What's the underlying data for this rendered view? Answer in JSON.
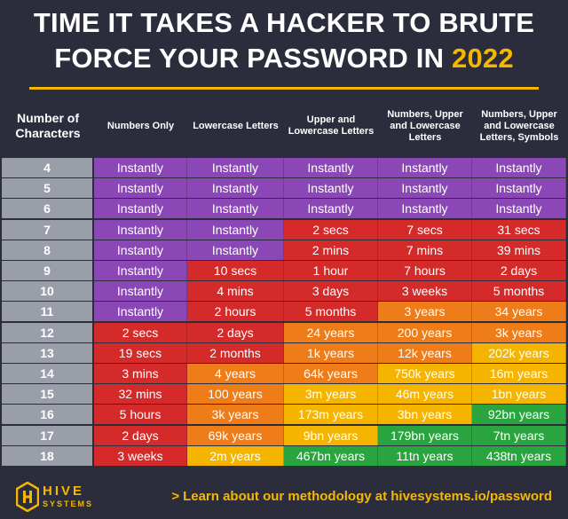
{
  "title": {
    "line1": "TIME IT TAKES A HACKER TO BRUTE",
    "line2": "FORCE YOUR PASSWORD IN ",
    "year": "2022"
  },
  "header": {
    "columns": [
      "Number of Characters",
      "Numbers Only",
      "Lowercase Letters",
      "Upper and Lowercase Letters",
      "Numbers, Upper and Lowercase Letters",
      "Numbers, Upper and Lowercase Letters, Symbols"
    ]
  },
  "colors": {
    "purple": "#8b47b5",
    "red": "#d42a2a",
    "orange": "#ee7c18",
    "yellow": "#f5b400",
    "green": "#29a43f",
    "gray": "#9a9ea8",
    "accent": "#f5b800"
  },
  "rows": [
    {
      "n": "4",
      "cells": [
        [
          "Instantly",
          "purple"
        ],
        [
          "Instantly",
          "purple"
        ],
        [
          "Instantly",
          "purple"
        ],
        [
          "Instantly",
          "purple"
        ],
        [
          "Instantly",
          "purple"
        ]
      ]
    },
    {
      "n": "5",
      "cells": [
        [
          "Instantly",
          "purple"
        ],
        [
          "Instantly",
          "purple"
        ],
        [
          "Instantly",
          "purple"
        ],
        [
          "Instantly",
          "purple"
        ],
        [
          "Instantly",
          "purple"
        ]
      ]
    },
    {
      "n": "6",
      "cells": [
        [
          "Instantly",
          "purple"
        ],
        [
          "Instantly",
          "purple"
        ],
        [
          "Instantly",
          "purple"
        ],
        [
          "Instantly",
          "purple"
        ],
        [
          "Instantly",
          "purple"
        ]
      ]
    },
    {
      "n": "7",
      "cells": [
        [
          "Instantly",
          "purple"
        ],
        [
          "Instantly",
          "purple"
        ],
        [
          "2 secs",
          "red"
        ],
        [
          "7 secs",
          "red"
        ],
        [
          "31 secs",
          "red"
        ]
      ]
    },
    {
      "n": "8",
      "cells": [
        [
          "Instantly",
          "purple"
        ],
        [
          "Instantly",
          "purple"
        ],
        [
          "2 mins",
          "red"
        ],
        [
          "7 mins",
          "red"
        ],
        [
          "39 mins",
          "red"
        ]
      ]
    },
    {
      "n": "9",
      "cells": [
        [
          "Instantly",
          "purple"
        ],
        [
          "10 secs",
          "red"
        ],
        [
          "1 hour",
          "red"
        ],
        [
          "7 hours",
          "red"
        ],
        [
          "2 days",
          "red"
        ]
      ]
    },
    {
      "n": "10",
      "cells": [
        [
          "Instantly",
          "purple"
        ],
        [
          "4 mins",
          "red"
        ],
        [
          "3 days",
          "red"
        ],
        [
          "3 weeks",
          "red"
        ],
        [
          "5 months",
          "red"
        ]
      ]
    },
    {
      "n": "11",
      "cells": [
        [
          "Instantly",
          "purple"
        ],
        [
          "2 hours",
          "red"
        ],
        [
          "5 months",
          "red"
        ],
        [
          "3 years",
          "orange"
        ],
        [
          "34 years",
          "orange"
        ]
      ]
    },
    {
      "n": "12",
      "cells": [
        [
          "2 secs",
          "red"
        ],
        [
          "2 days",
          "red"
        ],
        [
          "24 years",
          "orange"
        ],
        [
          "200 years",
          "orange"
        ],
        [
          "3k years",
          "orange"
        ]
      ]
    },
    {
      "n": "13",
      "cells": [
        [
          "19 secs",
          "red"
        ],
        [
          "2 months",
          "red"
        ],
        [
          "1k years",
          "orange"
        ],
        [
          "12k years",
          "orange"
        ],
        [
          "202k years",
          "yellow"
        ]
      ]
    },
    {
      "n": "14",
      "cells": [
        [
          "3 mins",
          "red"
        ],
        [
          "4 years",
          "orange"
        ],
        [
          "64k years",
          "orange"
        ],
        [
          "750k years",
          "yellow"
        ],
        [
          "16m years",
          "yellow"
        ]
      ]
    },
    {
      "n": "15",
      "cells": [
        [
          "32 mins",
          "red"
        ],
        [
          "100 years",
          "orange"
        ],
        [
          "3m years",
          "yellow"
        ],
        [
          "46m years",
          "yellow"
        ],
        [
          "1bn years",
          "yellow"
        ]
      ]
    },
    {
      "n": "16",
      "cells": [
        [
          "5 hours",
          "red"
        ],
        [
          "3k years",
          "orange"
        ],
        [
          "173m years",
          "yellow"
        ],
        [
          "3bn years",
          "yellow"
        ],
        [
          "92bn years",
          "green"
        ]
      ]
    },
    {
      "n": "17",
      "cells": [
        [
          "2 days",
          "red"
        ],
        [
          "69k years",
          "orange"
        ],
        [
          "9bn years",
          "yellow"
        ],
        [
          "179bn years",
          "green"
        ],
        [
          "7tn years",
          "green"
        ]
      ]
    },
    {
      "n": "18",
      "cells": [
        [
          "3 weeks",
          "red"
        ],
        [
          "2m years",
          "yellow"
        ],
        [
          "467bn years",
          "green"
        ],
        [
          "11tn years",
          "green"
        ],
        [
          "438tn years",
          "green"
        ]
      ]
    }
  ],
  "footer": {
    "logo_line1": "HIVE",
    "logo_line2": "SYSTEMS",
    "link_arrow": ">",
    "link_text": "Learn about our methodology at hivesystems.io/password"
  }
}
